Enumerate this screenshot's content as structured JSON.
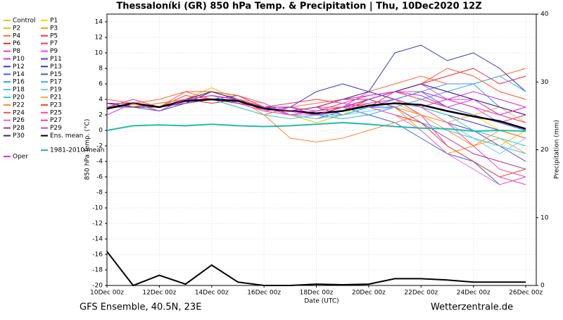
{
  "chart_data": {
    "type": "line",
    "title": "Thessaloníki  (GR)  850 hPa Temp. & Precipitation | Thu, 10Dec2020 12Z",
    "xlabel": "Date (UTC)",
    "ylabel": "850 hPa Temp. (°C)",
    "y2label": "Precipitation (mm)",
    "footer_left": "GFS Ensemble, 40.5N, 23E",
    "footer_right": "Wetterzentrale.de",
    "grid": true,
    "x": [
      0,
      1,
      2,
      3,
      4,
      5,
      6,
      7,
      8,
      9,
      10,
      11,
      12,
      13,
      14,
      15,
      16
    ],
    "xlim": [
      0,
      16.4
    ],
    "xticks": [
      {
        "value": 0,
        "label": "10Dec 00z"
      },
      {
        "value": 2,
        "label": "12Dec 00z"
      },
      {
        "value": 4,
        "label": "14Dec 00z"
      },
      {
        "value": 6,
        "label": "16Dec 00z"
      },
      {
        "value": 8,
        "label": "18Dec 00z"
      },
      {
        "value": 10,
        "label": "20Dec 00z"
      },
      {
        "value": 12,
        "label": "22Dec 00z"
      },
      {
        "value": 14,
        "label": "24Dec 00z"
      },
      {
        "value": 16,
        "label": "26Dec 00z"
      }
    ],
    "ylim": [
      -20,
      15
    ],
    "yticks": [
      -20,
      -18,
      -16,
      -14,
      -12,
      -10,
      -8,
      -6,
      -4,
      -2,
      0,
      2,
      4,
      6,
      8,
      10,
      12,
      14
    ],
    "y2lim": [
      0,
      40
    ],
    "y2ticks": [
      0,
      10,
      20,
      30,
      40
    ],
    "series": [
      {
        "name": "Control",
        "color": "#e6c800",
        "values": [
          3,
          3.5,
          3,
          4,
          4.5,
          4,
          3,
          2.5,
          2,
          2.5,
          3,
          4,
          5,
          4,
          3,
          2,
          1
        ]
      },
      {
        "name": "P1",
        "color": "#ffd700",
        "values": [
          3.5,
          3.5,
          2.5,
          4,
          5,
          4.5,
          3,
          2,
          1.5,
          2,
          4,
          5,
          4.5,
          3,
          2,
          0,
          -1
        ]
      },
      {
        "name": "P2",
        "color": "#e8c000",
        "values": [
          3,
          3.2,
          3,
          4,
          5.5,
          4,
          3.5,
          2,
          1,
          2,
          3,
          3.5,
          2,
          1,
          -1,
          -2,
          0
        ]
      },
      {
        "name": "P3",
        "color": "#ff9900",
        "values": [
          3.5,
          3,
          3.5,
          4,
          4.5,
          3.5,
          2.5,
          2,
          2.5,
          3,
          4,
          3,
          0,
          -3,
          -2,
          -1,
          -3
        ]
      },
      {
        "name": "P4",
        "color": "#ff6633",
        "values": [
          4,
          3.5,
          4,
          5,
          4,
          3,
          2,
          3,
          3.5,
          4,
          5,
          6,
          7,
          6,
          6,
          7,
          8
        ]
      },
      {
        "name": "P5",
        "color": "#ff3333",
        "values": [
          3,
          3.5,
          3,
          4.5,
          4,
          4.5,
          3,
          3.5,
          4,
          3.5,
          3,
          5,
          6,
          5,
          4,
          2,
          3
        ]
      },
      {
        "name": "P6",
        "color": "#e8262a",
        "values": [
          3.5,
          3,
          3.5,
          4,
          3.5,
          4,
          2.5,
          3,
          2,
          2.5,
          4,
          5,
          6,
          7,
          8,
          6,
          7
        ]
      },
      {
        "name": "P7",
        "color": "#ff3366",
        "values": [
          3,
          4,
          3,
          4,
          4.5,
          4,
          3,
          2.5,
          3,
          4,
          4.5,
          5,
          4,
          3,
          2,
          1,
          2
        ]
      },
      {
        "name": "P8",
        "color": "#ff33cc",
        "values": [
          3.5,
          3.5,
          2.5,
          3.5,
          4,
          3.5,
          2.5,
          3,
          2.5,
          3,
          5,
          4,
          2,
          -2,
          -4,
          -6,
          -7
        ]
      },
      {
        "name": "P9",
        "color": "#ee44ee",
        "values": [
          3,
          3,
          3,
          4,
          4,
          4.5,
          3.5,
          2,
          2,
          3,
          4,
          5,
          6,
          4,
          3,
          1,
          0
        ]
      },
      {
        "name": "P10",
        "color": "#cc33cc",
        "values": [
          3.5,
          3.5,
          3,
          4,
          4,
          3.5,
          3,
          3,
          2,
          3,
          3.5,
          4,
          3,
          4,
          5,
          4,
          3
        ]
      },
      {
        "name": "P11",
        "color": "#6633cc",
        "values": [
          3,
          3.5,
          3,
          3.5,
          4,
          4,
          3,
          2.5,
          3,
          2,
          3,
          3,
          2,
          1,
          0,
          -2,
          -4
        ]
      },
      {
        "name": "P12",
        "color": "#3333cc",
        "values": [
          3.5,
          3,
          3,
          3.5,
          4,
          3.5,
          3,
          3,
          5,
          6,
          5,
          4,
          3,
          2,
          1,
          0,
          -1
        ]
      },
      {
        "name": "P13",
        "color": "#3333aa",
        "values": [
          3,
          3.5,
          3,
          3.5,
          5,
          4,
          3,
          2.5,
          3,
          4,
          5,
          10,
          11,
          9,
          10,
          8,
          5
        ]
      },
      {
        "name": "P14",
        "color": "#3366ff",
        "values": [
          3.5,
          3.5,
          3,
          3.5,
          4,
          4,
          3,
          2,
          1.5,
          2.5,
          3,
          4,
          5,
          3,
          2,
          1,
          0
        ]
      },
      {
        "name": "P15",
        "color": "#3366cc",
        "values": [
          3,
          3,
          2.5,
          3.5,
          4,
          4.5,
          3,
          2,
          2,
          3,
          2,
          1,
          -1,
          -3,
          -4,
          -7,
          -6
        ]
      },
      {
        "name": "P16",
        "color": "#3399ff",
        "values": [
          3.5,
          3.5,
          3,
          4,
          4.5,
          3.5,
          2.5,
          2,
          2,
          2.5,
          3,
          4,
          5,
          6,
          6,
          3,
          2
        ]
      },
      {
        "name": "P17",
        "color": "#33aaff",
        "values": [
          3,
          3.5,
          3,
          4,
          4,
          3.5,
          3,
          2.5,
          2,
          1.5,
          2,
          3,
          4,
          5,
          6,
          7,
          5
        ]
      },
      {
        "name": "P18",
        "color": "#33ccdd",
        "values": [
          3.5,
          3,
          3,
          3.5,
          4,
          3,
          2,
          1.5,
          2,
          2.5,
          3,
          2,
          1,
          0,
          -1,
          -2,
          -3
        ]
      },
      {
        "name": "P19",
        "color": "#66ccff",
        "values": [
          3,
          3.5,
          3,
          4,
          4.5,
          3.5,
          3,
          2,
          1.5,
          2,
          2.5,
          3,
          2,
          1,
          -1,
          -3,
          -1
        ]
      },
      {
        "name": "P20",
        "color": "#33cccc",
        "values": [
          3.5,
          3.5,
          3,
          4,
          4,
          4,
          3,
          2.5,
          2,
          2,
          3,
          3.5,
          3,
          2,
          0,
          -1,
          -2
        ]
      },
      {
        "name": "P21",
        "color": "#ffaa33",
        "values": [
          3,
          3.5,
          3,
          4,
          5,
          4.5,
          3,
          2.5,
          2,
          3,
          4,
          3,
          2,
          1,
          2,
          3,
          1
        ]
      },
      {
        "name": "P22",
        "color": "#ff8833",
        "values": [
          3.5,
          3,
          3.5,
          4,
          4.5,
          4,
          2,
          -1,
          -1.5,
          -1,
          0,
          1,
          2,
          0,
          -2,
          0,
          -1
        ]
      },
      {
        "name": "P23",
        "color": "#ee4422",
        "values": [
          3,
          3.5,
          3,
          4,
          4,
          3.5,
          3,
          2,
          2.5,
          3,
          3,
          2,
          1,
          -2,
          -4,
          -6,
          -5
        ]
      },
      {
        "name": "P24",
        "color": "#ff5533",
        "values": [
          3.5,
          3.5,
          3,
          5,
          5,
          4.5,
          3,
          2.5,
          3,
          3,
          4,
          5,
          6,
          8,
          7,
          5,
          4
        ]
      },
      {
        "name": "P25",
        "color": "#ff44aa",
        "values": [
          3,
          3.5,
          3,
          4,
          4.5,
          4,
          3,
          2,
          2,
          2.5,
          3.5,
          4,
          3,
          1,
          -2,
          -5,
          -6
        ]
      },
      {
        "name": "P26",
        "color": "#ee66cc",
        "values": [
          3.5,
          3,
          3,
          4,
          4,
          3.5,
          2.5,
          2,
          2,
          3,
          3,
          2,
          0,
          -3,
          -5,
          -7,
          -6
        ]
      },
      {
        "name": "P27",
        "color": "#dd44bb",
        "values": [
          3,
          3.5,
          3,
          4,
          4.5,
          4,
          3,
          2.5,
          2,
          3,
          4,
          5,
          5,
          4,
          3,
          2,
          1
        ]
      },
      {
        "name": "P28",
        "color": "#aa33aa",
        "values": [
          3.5,
          3.5,
          3,
          3.5,
          4,
          3.5,
          3,
          2.5,
          3,
          4,
          4,
          3,
          1,
          -1,
          -3,
          -4,
          -5
        ]
      },
      {
        "name": "P29",
        "color": "#cc44dd",
        "values": [
          3,
          3.5,
          3,
          4,
          4,
          4,
          3,
          2,
          2.5,
          3.5,
          4.5,
          5,
          5,
          4,
          4,
          3,
          2
        ]
      },
      {
        "name": "P30",
        "color": "#2a2a80",
        "values": [
          3.5,
          3,
          3,
          4,
          5,
          4,
          3,
          2.5,
          2,
          3,
          4,
          5,
          6,
          5,
          4,
          3,
          2
        ]
      },
      {
        "name": "Ens. mean",
        "color": "#000000",
        "values": [
          2.8,
          3.5,
          3.0,
          3.8,
          4.0,
          3.8,
          2.8,
          2.5,
          2.2,
          2.5,
          3.2,
          3.5,
          3.3,
          2.5,
          1.8,
          1.2,
          0.2
        ]
      },
      {
        "name": "1981-2010 mean",
        "color": "#22bbaa",
        "values": [
          0,
          0.6,
          0.7,
          0.6,
          0.8,
          0.6,
          0.5,
          0.6,
          0.8,
          1.0,
          0.8,
          0.5,
          0.3,
          0.2,
          -0.1,
          0,
          -0.1
        ]
      },
      {
        "name": "Oper",
        "color": "#dd33dd",
        "values": [
          2,
          3.5,
          2.5,
          4,
          4.5,
          4,
          3,
          2.5,
          2,
          3,
          4,
          5,
          4.5,
          3,
          4,
          2,
          3
        ]
      }
    ],
    "precipitation": {
      "axis": "y2",
      "color": "#000000",
      "values": [
        5,
        0,
        1.5,
        0.2,
        3,
        0.5,
        0,
        0,
        0.2,
        0.1,
        0.2,
        1,
        1,
        0.8,
        0.5,
        0.5,
        0.5
      ]
    }
  }
}
